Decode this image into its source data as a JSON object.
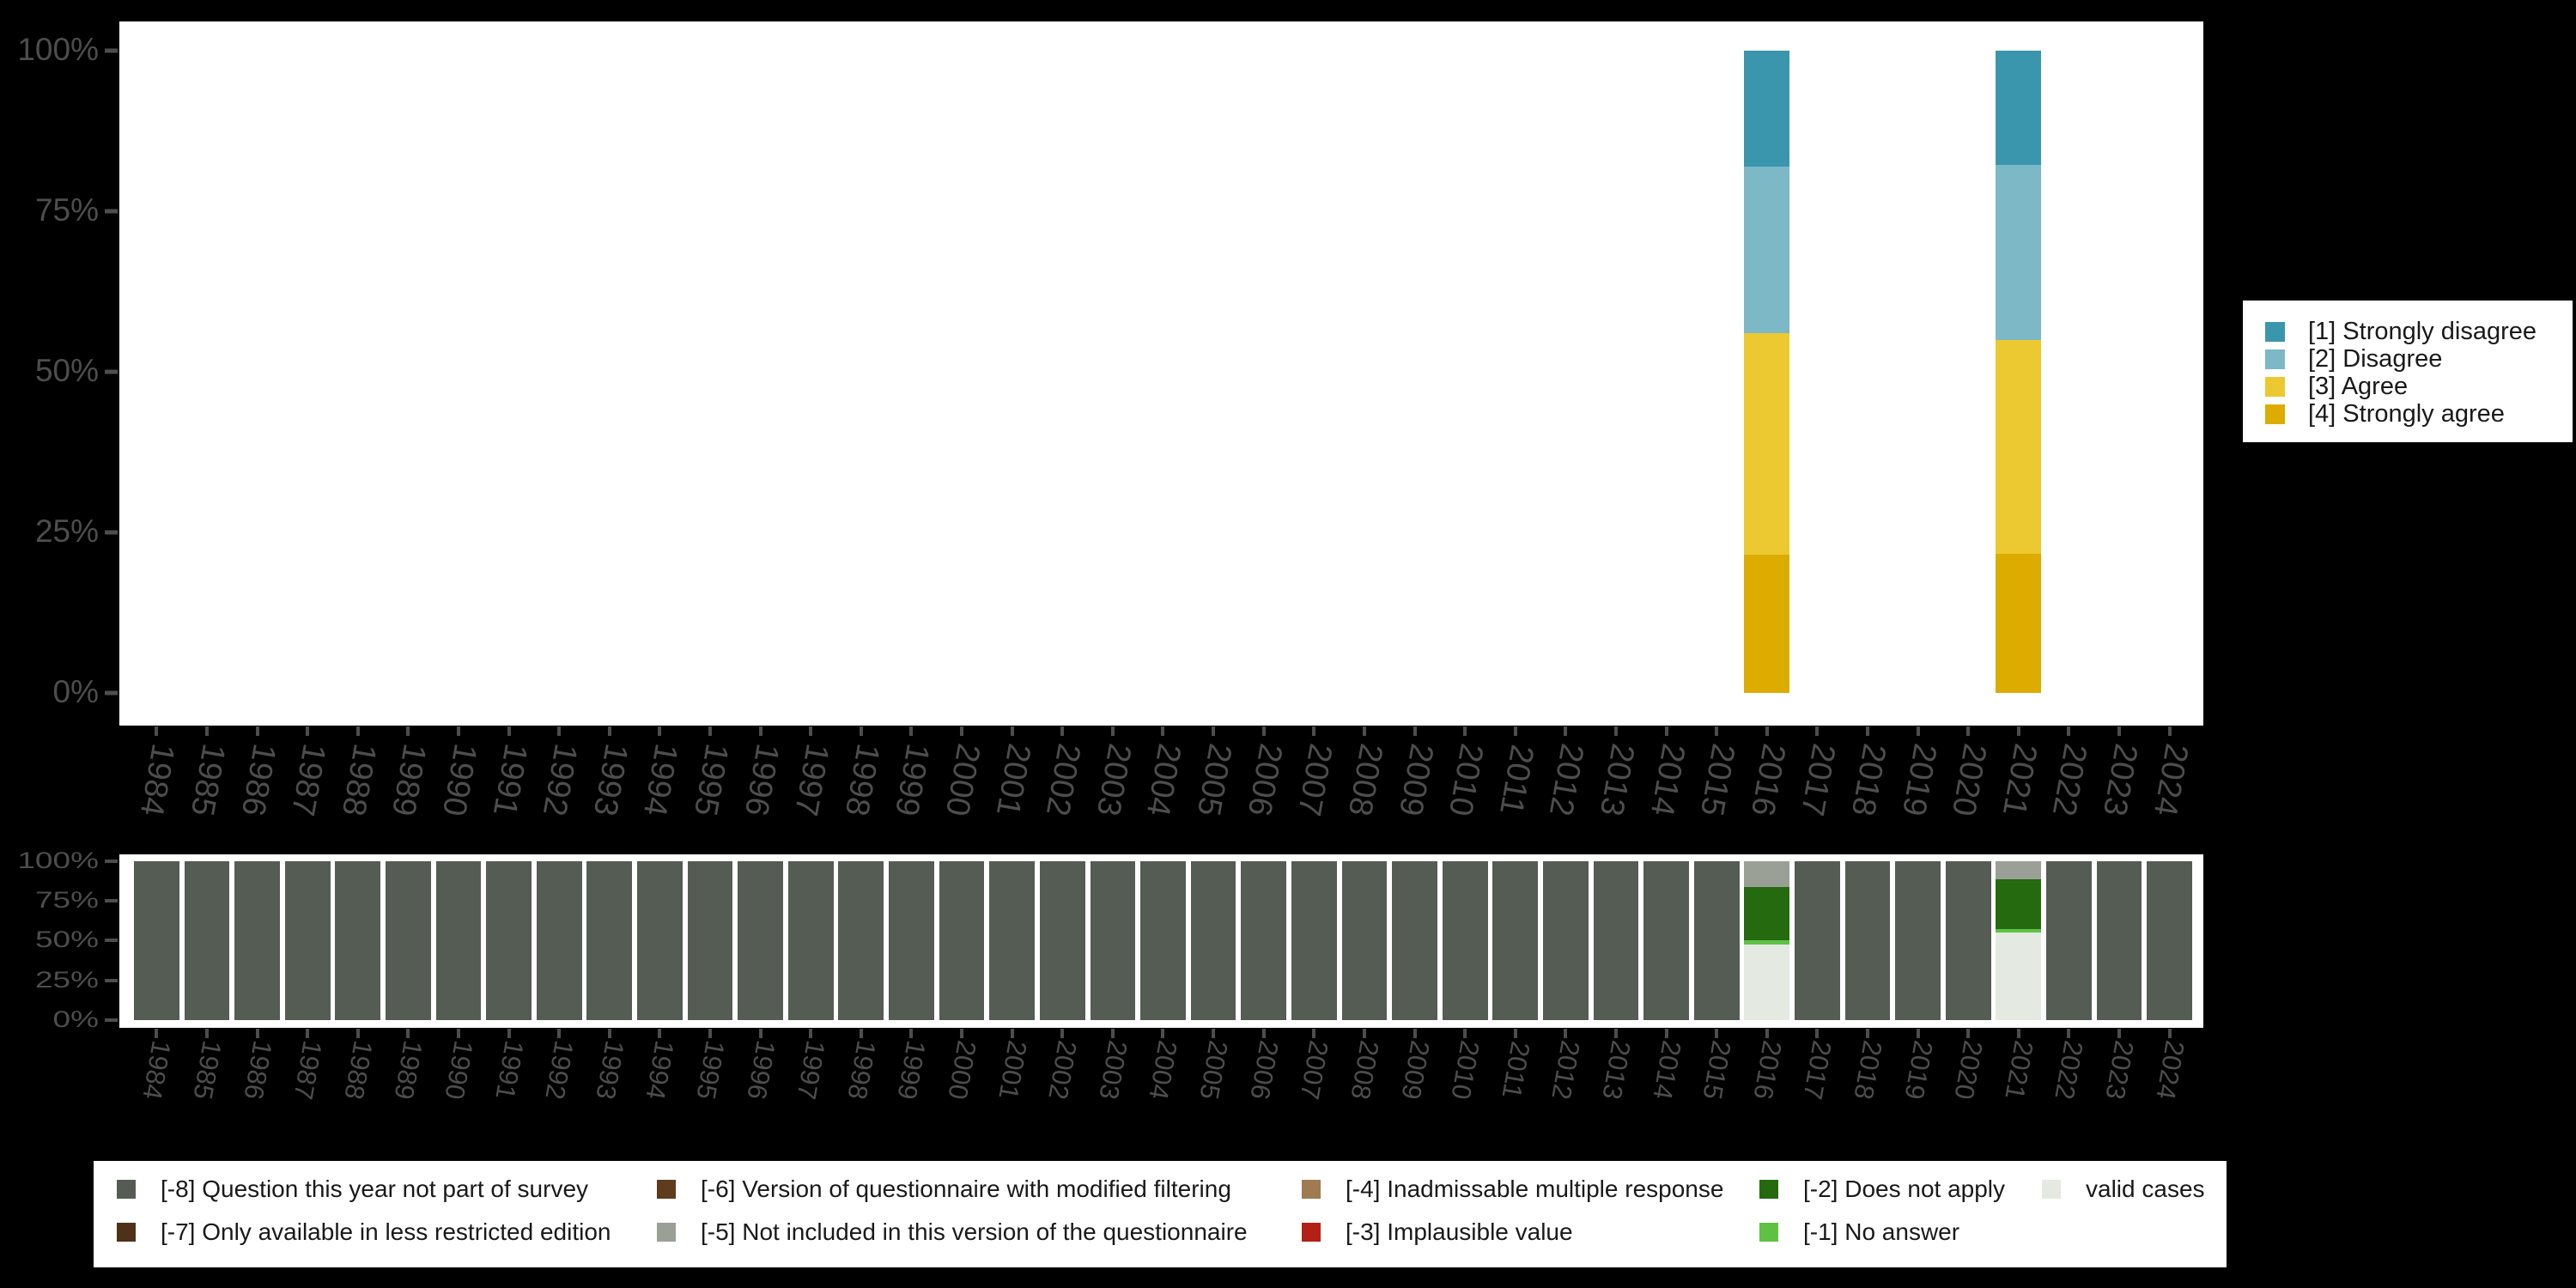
{
  "style": {
    "page_background": "#000000",
    "plot_background": "#ffffff",
    "axis_color": "#4d4d4d",
    "legend_text_color": "#191919"
  },
  "y_axis": {
    "tick_labels": [
      "100%",
      "75%",
      "50%",
      "25%",
      "0%"
    ]
  },
  "top_legend": {
    "entries": [
      {
        "label": "[1] Strongly disagree",
        "color": "#3a96ad"
      },
      {
        "label": "[2] Disagree",
        "color": "#7cb8c6"
      },
      {
        "label": "[3] Agree",
        "color": "#ecc930"
      },
      {
        "label": "[4] Strongly agree",
        "color": "#dcac00"
      }
    ]
  },
  "bottom_legend": {
    "columns": [
      {
        "rows": [
          {
            "label": "[-8] Question this year not part of survey",
            "color": "#545c54"
          },
          {
            "label": "[-7] Only available in less restricted edition",
            "color": "#4f3119"
          }
        ]
      },
      {
        "rows": [
          {
            "label": "[-6] Version of questionnaire with modified filtering",
            "color": "#5e3c1c"
          },
          {
            "label": "[-5] Not included in this version of the questionnaire",
            "color": "#9aa096"
          }
        ]
      },
      {
        "rows": [
          {
            "label": "[-4] Inadmissable multiple response",
            "color": "#9e7b51"
          },
          {
            "label": "[-3] Implausible value",
            "color": "#b22016"
          }
        ]
      },
      {
        "rows": [
          {
            "label": "[-2] Does not apply",
            "color": "#266a10"
          },
          {
            "label": "[-1] No answer",
            "color": "#5ec143"
          }
        ]
      },
      {
        "rows": [
          {
            "label": "valid cases",
            "color": "#e4e9e1"
          }
        ]
      }
    ]
  },
  "chart_data": [
    {
      "type": "bar",
      "stacking": "percent",
      "title": "",
      "categories": [
        "1984",
        "1985",
        "1986",
        "1987",
        "1988",
        "1989",
        "1990",
        "1991",
        "1992",
        "1993",
        "1994",
        "1995",
        "1996",
        "1997",
        "1998",
        "1999",
        "2000",
        "2001",
        "2002",
        "2003",
        "2004",
        "2005",
        "2006",
        "2007",
        "2008",
        "2009",
        "2010",
        "2011",
        "2012",
        "2013",
        "2014",
        "2015",
        "2016",
        "2017",
        "2018",
        "2019",
        "2020",
        "2021",
        "2022",
        "2023",
        "2024"
      ],
      "ylim": [
        0,
        100
      ],
      "y_tick_labels": [
        "0%",
        "25%",
        "50%",
        "75%",
        "100%"
      ],
      "legend_position": "right",
      "grid": "off",
      "note": "Only 2016 and 2021 have data; all other years are empty. Series listed in stack order top-to-bottom.",
      "series": [
        {
          "name": "[1] Strongly disagree",
          "color": "#3a96ad",
          "values_by_year": {
            "2016": 18.0,
            "2021": 17.8
          }
        },
        {
          "name": "[2] Disagree",
          "color": "#7cb8c6",
          "values_by_year": {
            "2016": 26.0,
            "2021": 27.2
          }
        },
        {
          "name": "[3] Agree",
          "color": "#ecc930",
          "values_by_year": {
            "2016": 34.5,
            "2021": 33.4
          }
        },
        {
          "name": "[4] Strongly agree",
          "color": "#dcac00",
          "values_by_year": {
            "2016": 21.5,
            "2021": 21.6
          }
        }
      ]
    },
    {
      "type": "bar",
      "stacking": "percent",
      "title": "",
      "categories": [
        "1984",
        "1985",
        "1986",
        "1987",
        "1988",
        "1989",
        "1990",
        "1991",
        "1992",
        "1993",
        "1994",
        "1995",
        "1996",
        "1997",
        "1998",
        "1999",
        "2000",
        "2001",
        "2002",
        "2003",
        "2004",
        "2005",
        "2006",
        "2007",
        "2008",
        "2009",
        "2010",
        "2011",
        "2012",
        "2013",
        "2014",
        "2015",
        "2016",
        "2017",
        "2018",
        "2019",
        "2020",
        "2021",
        "2022",
        "2023",
        "2024"
      ],
      "ylim": [
        0,
        100
      ],
      "y_tick_labels": [
        "0%",
        "25%",
        "50%",
        "75%",
        "100%"
      ],
      "legend_position": "bottom",
      "grid": "off",
      "note": "Missing-values chart: every year is 100% [-8] except 2016 and 2021. Exception segments listed top-to-bottom.",
      "default_segment": {
        "name": "[-8] Question this year not part of survey",
        "color": "#545c54",
        "value": 100
      },
      "exceptions": {
        "2016": [
          {
            "name": "[-5] Not included in this version of the questionnaire",
            "color": "#9aa096",
            "value": 16.0
          },
          {
            "name": "[-2] Does not apply",
            "color": "#266a10",
            "value": 34.0
          },
          {
            "name": "[-1] No answer",
            "color": "#5ec143",
            "value": 2.3
          },
          {
            "name": "valid cases",
            "color": "#e4e9e1",
            "value": 47.7
          }
        ],
        "2021": [
          {
            "name": "[-5] Not included in this version of the questionnaire",
            "color": "#9aa096",
            "value": 11.4
          },
          {
            "name": "[-2] Does not apply",
            "color": "#266a10",
            "value": 31.5
          },
          {
            "name": "[-1] No answer",
            "color": "#5ec143",
            "value": 1.8
          },
          {
            "name": "valid cases",
            "color": "#e4e9e1",
            "value": 55.3
          }
        ]
      }
    }
  ]
}
